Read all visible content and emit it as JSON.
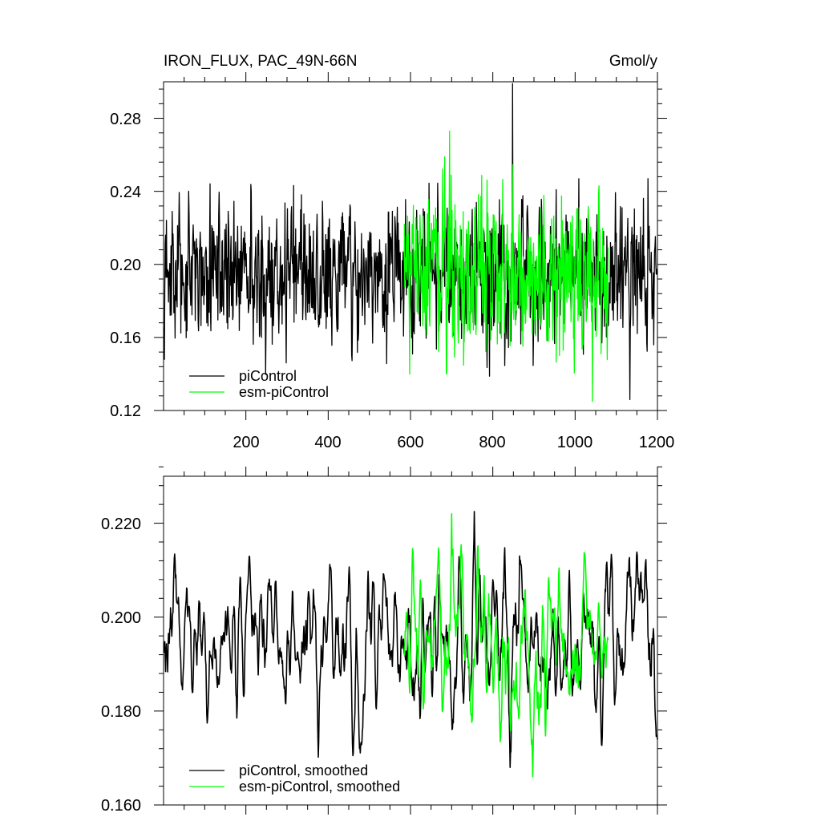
{
  "chart_data": [
    {
      "type": "line",
      "title": "IRON_FLUX, PAC_49N-66N",
      "units": "Gmol/y",
      "xlim": [
        0,
        1200
      ],
      "ylim": [
        0.12,
        0.3
      ],
      "xticks": [
        200,
        400,
        600,
        800,
        1000,
        1200
      ],
      "yticks": [
        0.12,
        0.16,
        0.2,
        0.24,
        0.28
      ],
      "legend_position": "bottom-left",
      "series": [
        {
          "name": "piControl",
          "color": "#000000",
          "x_range": [
            1,
            1200
          ],
          "mean": 0.195,
          "std": 0.019,
          "max_value": 0.299,
          "min_value": 0.126
        },
        {
          "name": "esm-piControl",
          "color": "#00ff00",
          "x_range": [
            585,
            1080
          ],
          "mean": 0.195,
          "std": 0.022,
          "max_value": 0.273,
          "min_value": 0.125
        }
      ]
    },
    {
      "type": "line",
      "xlim": [
        0,
        1200
      ],
      "ylim": [
        0.16,
        0.23
      ],
      "yticks": [
        0.16,
        0.18,
        0.2,
        0.22
      ],
      "legend_position": "bottom-left",
      "series": [
        {
          "name": "piControl, smoothed",
          "color": "#000000",
          "x_range": [
            1,
            1200
          ],
          "mean": 0.195,
          "std": 0.0085,
          "max_value": 0.2225,
          "min_value": 0.168
        },
        {
          "name": "esm-piControl, smoothed",
          "color": "#00ff00",
          "x_range": [
            585,
            1080
          ],
          "mean": 0.194,
          "std": 0.009,
          "max_value": 0.222,
          "min_value": 0.166
        }
      ]
    }
  ],
  "labels": {
    "top_title": "IRON_FLUX, PAC_49N-66N",
    "top_units": "Gmol/y",
    "top_y_ticks": [
      "0.12",
      "0.16",
      "0.20",
      "0.24",
      "0.28"
    ],
    "x_ticks": [
      "200",
      "400",
      "600",
      "800",
      "1000",
      "1200"
    ],
    "bottom_y_ticks": [
      "0.160",
      "0.180",
      "0.200",
      "0.220"
    ],
    "top_legend": [
      "piControl",
      "esm-piControl"
    ],
    "bottom_legend": [
      "piControl, smoothed",
      "esm-piControl, smoothed"
    ]
  }
}
